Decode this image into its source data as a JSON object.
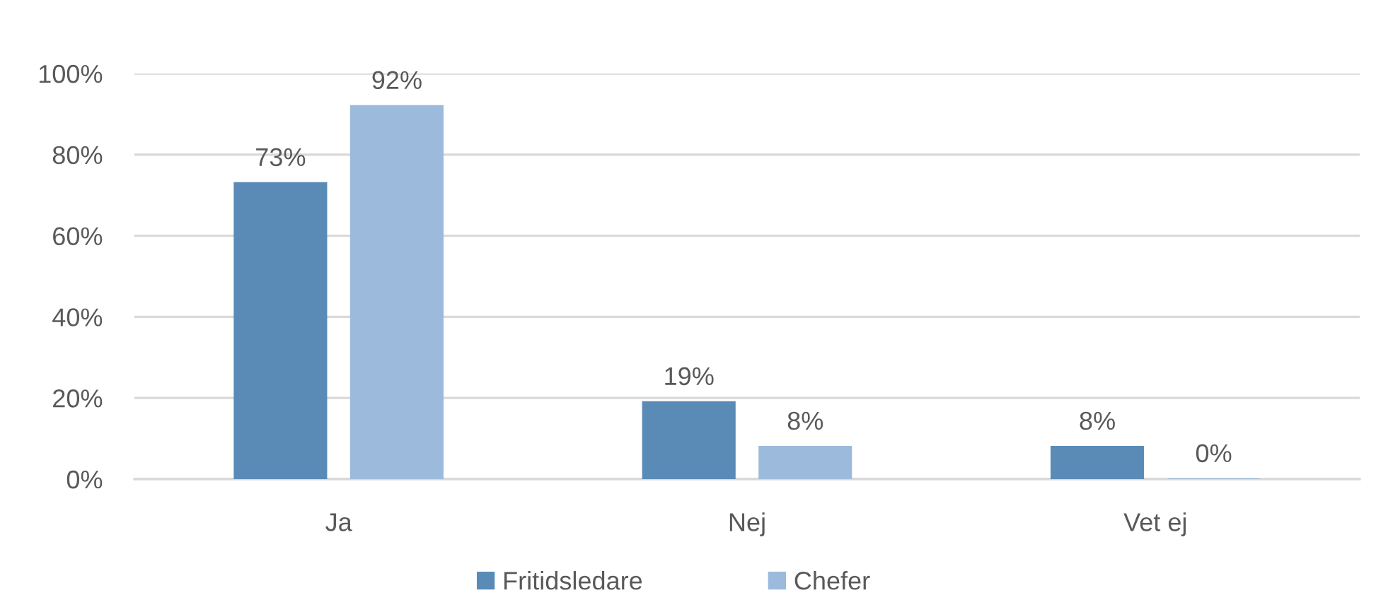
{
  "chart_data": {
    "type": "bar",
    "categories": [
      "Ja",
      "Nej",
      "Vet ej"
    ],
    "series": [
      {
        "name": "Fritidsledare",
        "color": "#5a8bb6",
        "values": [
          73,
          19,
          8
        ],
        "value_labels": [
          "73%",
          "19%",
          "8%"
        ]
      },
      {
        "name": "Chefer",
        "color": "#9cbadc",
        "values": [
          92,
          8,
          0
        ],
        "value_labels": [
          "92%",
          "8%",
          "0%"
        ]
      }
    ],
    "ylim": [
      0,
      100
    ],
    "yticks": [
      {
        "value": 0,
        "label": "0%"
      },
      {
        "value": 20,
        "label": "20%"
      },
      {
        "value": 40,
        "label": "40%"
      },
      {
        "value": 60,
        "label": "60%"
      },
      {
        "value": 80,
        "label": "80%"
      },
      {
        "value": 100,
        "label": "100%"
      }
    ],
    "grid": "y",
    "legend": "bottom"
  }
}
